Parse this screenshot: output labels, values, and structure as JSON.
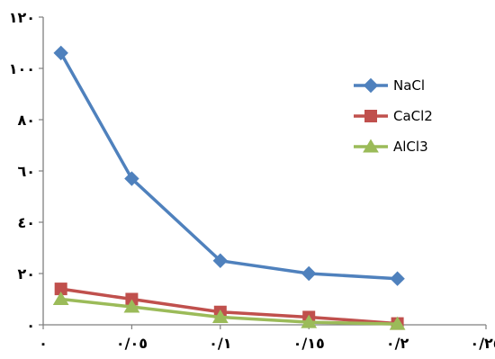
{
  "chart_data": {
    "type": "line",
    "x": [
      0.01,
      0.05,
      0.1,
      0.15,
      0.2
    ],
    "series": [
      {
        "name": "NaCl",
        "color": "#4f81bd",
        "marker": "diamond",
        "values": [
          106,
          57,
          25,
          20,
          18
        ]
      },
      {
        "name": "CaCl2",
        "color": "#c0504d",
        "marker": "square",
        "values": [
          14,
          10,
          5,
          3,
          0.5
        ]
      },
      {
        "name": "AlCl3",
        "color": "#9bbb59",
        "marker": "triangle",
        "values": [
          10,
          7,
          3,
          1,
          0.3
        ]
      }
    ],
    "xlim": [
      0,
      0.25
    ],
    "ylim": [
      0,
      120
    ],
    "x_ticks": [
      0,
      0.05,
      0.1,
      0.15,
      0.2,
      0.25
    ],
    "x_tick_labels": [
      "٠",
      "٠/٠٥",
      "٠/١",
      "٠/١٥",
      "٠/٢",
      "٠/٢٥"
    ],
    "y_ticks": [
      0,
      20,
      40,
      60,
      80,
      100,
      120
    ],
    "y_tick_labels": [
      "٠",
      "٢٠",
      "٤٠",
      "٦٠",
      "٨٠",
      "١٠٠",
      "١٢٠"
    ],
    "title": "",
    "xlabel": "",
    "ylabel": "",
    "grid": false,
    "legend_position": "top-right"
  }
}
